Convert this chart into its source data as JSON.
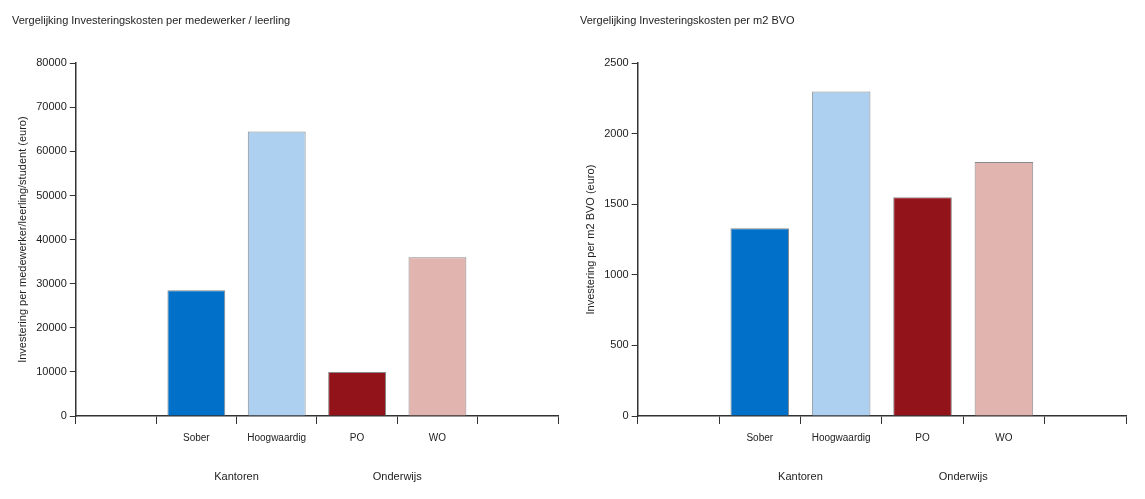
{
  "chart_data": [
    {
      "type": "bar",
      "title": "Vergelijking Investeringskosten per medewerker / leerling",
      "ylabel": "Investering per medewerker/leerling/student (euro)",
      "categories": [
        null,
        "Sober",
        "Hoogwaardig",
        "PO",
        "WO",
        null
      ],
      "values": [
        null,
        28500,
        64500,
        10000,
        36000,
        null
      ],
      "colors": [
        null,
        "#0070c8",
        "#aed0f0",
        "#93131a",
        "#e2b4b0",
        null
      ],
      "ylim": [
        0,
        80000
      ],
      "yticks": [
        0,
        10000,
        20000,
        30000,
        40000,
        50000,
        60000,
        70000,
        80000
      ],
      "grid": false,
      "legend": false,
      "annotations": [
        "Kantoren",
        "Onderwijs"
      ]
    },
    {
      "type": "bar",
      "title": "Vergelijking Investeringskosten per m2 BVO",
      "ylabel": "Investering per m2 BVO (euro)",
      "categories": [
        null,
        "Sober",
        "Hoogwaardig",
        "PO",
        "WO",
        null
      ],
      "values": [
        null,
        1330,
        2300,
        1550,
        1800,
        null
      ],
      "colors": [
        null,
        "#0070c8",
        "#aed0f0",
        "#93131a",
        "#e2b4b0",
        null
      ],
      "ylim": [
        0,
        2500
      ],
      "yticks": [
        0,
        500,
        1000,
        1500,
        2000,
        2500
      ],
      "grid": false,
      "legend": false,
      "annotations": [
        "Kantoren",
        "Onderwijs"
      ]
    }
  ]
}
